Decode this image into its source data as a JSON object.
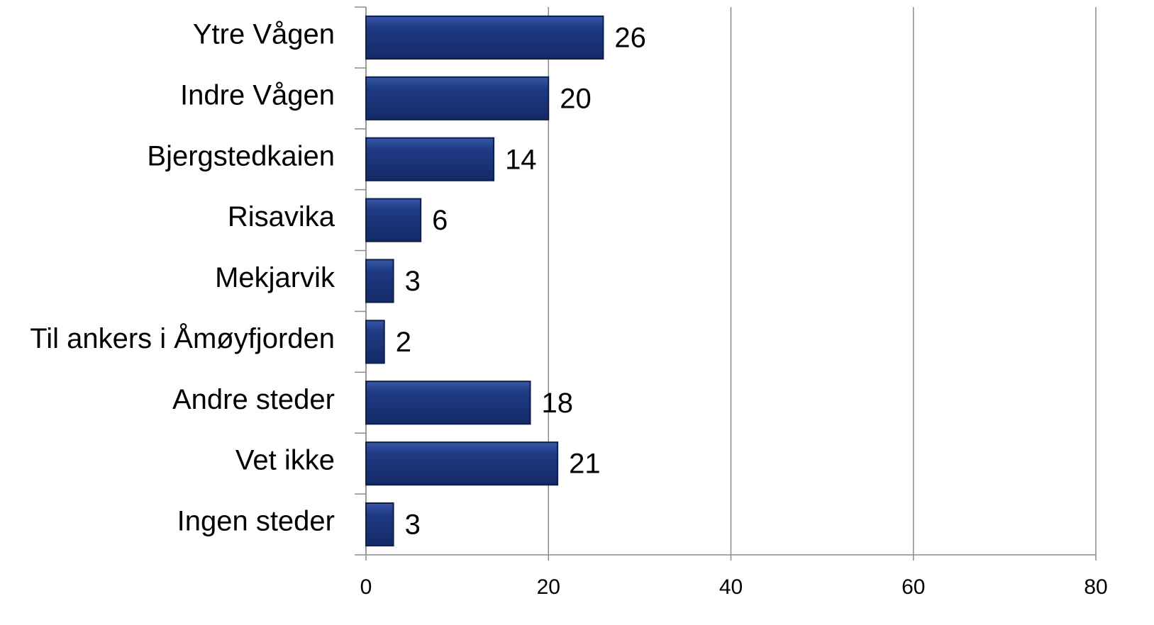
{
  "chart_data": {
    "type": "bar",
    "orientation": "horizontal",
    "categories": [
      "Ytre Vågen",
      "Indre Vågen",
      "Bjergstedkaien",
      "Risavika",
      "Mekjarvik",
      "Til ankers i Åmøyfjorden",
      "Andre steder",
      "Vet ikke",
      "Ingen steder"
    ],
    "values": [
      26,
      20,
      14,
      6,
      3,
      2,
      18,
      21,
      3
    ],
    "color": "#1f3b85",
    "xlim": [
      0,
      80
    ],
    "xticks": [
      0,
      20,
      40,
      60,
      80
    ],
    "grid": true
  }
}
